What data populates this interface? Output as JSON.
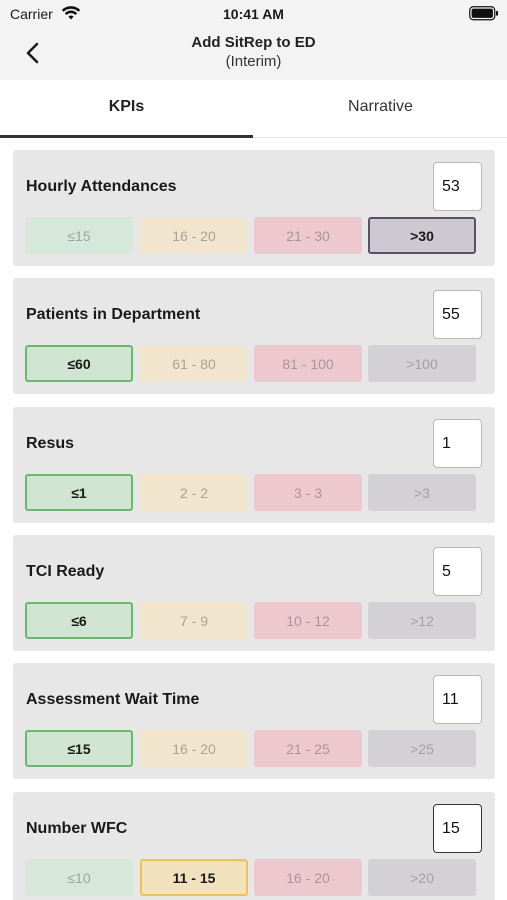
{
  "status_bar": {
    "carrier": "Carrier",
    "time": "10:41 AM",
    "wifi_icon": "wifi-icon",
    "battery_icon": "battery-icon"
  },
  "nav": {
    "title": "Add SitRep to ED",
    "subtitle": "(Interim)",
    "back_icon": "chevron-left-icon"
  },
  "tabs": [
    {
      "label": "KPIs",
      "active": true
    },
    {
      "label": "Narrative",
      "active": false
    }
  ],
  "colors": {
    "green_selected_border": "#66bb6a",
    "yellow_selected_border": "#f2c14e",
    "grey_selected_border": "#5b4f6b"
  },
  "kpis": [
    {
      "title": "Hourly Attendances",
      "value": "53",
      "ranges": [
        "≤15",
        "16 - 20",
        "21 - 30",
        ">30"
      ],
      "selected": 3
    },
    {
      "title": "Patients in Department",
      "value": "55",
      "ranges": [
        "≤60",
        "61 - 80",
        "81 - 100",
        ">100"
      ],
      "selected": 0
    },
    {
      "title": "Resus",
      "value": "1",
      "ranges": [
        "≤1",
        "2 - 2",
        "3 - 3",
        ">3"
      ],
      "selected": 0
    },
    {
      "title": "TCI Ready",
      "value": "5",
      "ranges": [
        "≤6",
        "7 - 9",
        "10 - 12",
        ">12"
      ],
      "selected": 0
    },
    {
      "title": "Assessment Wait Time",
      "value": "11",
      "ranges": [
        "≤15",
        "16 - 20",
        "21 - 25",
        ">25"
      ],
      "selected": 0
    },
    {
      "title": "Number WFC",
      "value": "15",
      "ranges": [
        "≤10",
        "11 - 15",
        "16 - 20",
        ">20"
      ],
      "selected": 1
    }
  ]
}
